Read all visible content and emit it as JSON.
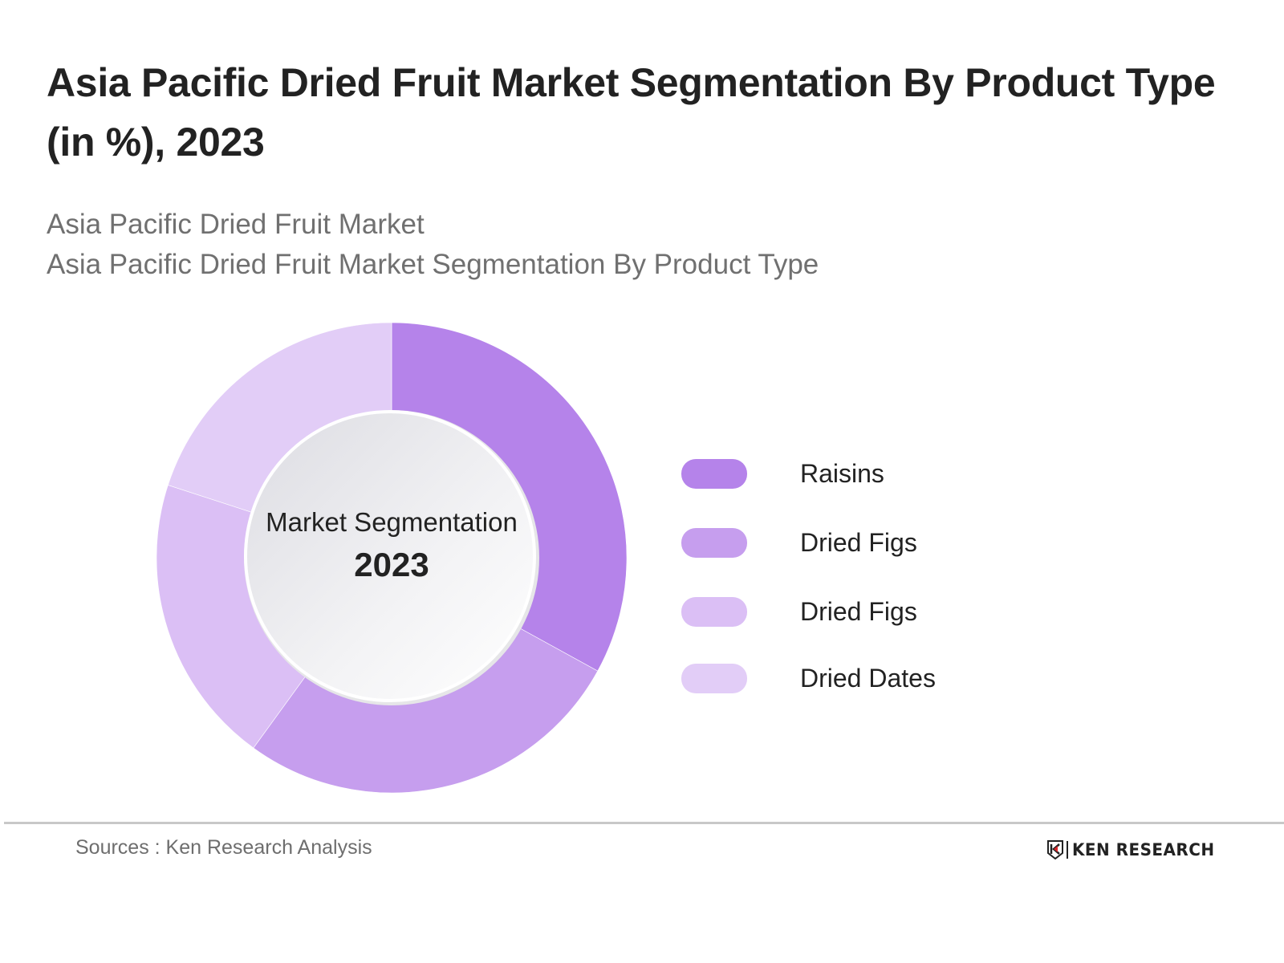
{
  "header": {
    "title": "Asia Pacific Dried Fruit Market Segmentation By Product Type (in %), 2023",
    "subtitle_line1": "Asia Pacific Dried Fruit Market",
    "subtitle_line2": "Asia Pacific Dried Fruit Market Segmentation By Product Type"
  },
  "center": {
    "label": "Market Segmentation",
    "year": "2023"
  },
  "legend": {
    "items": [
      {
        "label": "Raisins",
        "color": "#b583ea"
      },
      {
        "label": "Dried Figs",
        "color": "#c69eee"
      },
      {
        "label": "Dried Figs",
        "color": "#dbbff5"
      },
      {
        "label": "Dried Dates",
        "color": "#e2cdf7"
      }
    ]
  },
  "footer": {
    "source": "Sources : Ken Research Analysis",
    "logo_text": "KEN RESEARCH"
  },
  "chart_data": {
    "type": "pie",
    "variant": "donut",
    "title": "Asia Pacific Dried Fruit Market Segmentation By Product Type (in %), 2023",
    "subtitle": "Asia Pacific Dried Fruit Market Segmentation By Product Type",
    "center_text": "Market Segmentation 2023",
    "categories": [
      "Raisins",
      "Dried Figs",
      "Dried Figs",
      "Dried Dates"
    ],
    "values": [
      33,
      27,
      20,
      20
    ],
    "unit": "%",
    "colors": [
      "#b583ea",
      "#c69eee",
      "#dbbff5",
      "#e2cdf7"
    ],
    "start_angle_deg": 0,
    "direction": "clockwise",
    "legend_position": "right",
    "data_labels": false
  }
}
